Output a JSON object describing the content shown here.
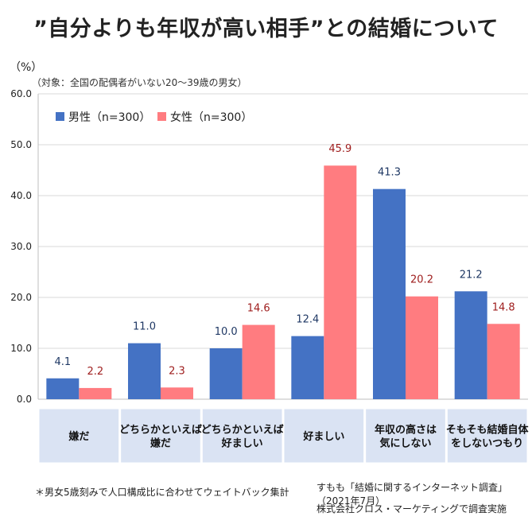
{
  "title": "”自分よりも年収が高い相手”との結婚について",
  "unit": "（%）",
  "subtitle": "（対象：全国の配偶者がいない20～39歳の男女）",
  "footnote": "＊男女5歳刻みで人口構成比に合わせてウェイトバック集計",
  "source_line1": "すもも「結婚に関するインターネット調査」（2021年7月）",
  "source_line2": "株式会社クロス・マーケティングで調査実施",
  "chart_data": {
    "type": "bar",
    "categories": [
      [
        "嫌だ"
      ],
      [
        "どちらかといえば",
        "嫌だ"
      ],
      [
        "どちらかといえば",
        "好ましい"
      ],
      [
        "好ましい"
      ],
      [
        "年収の高さは",
        "気にしない"
      ],
      [
        "そもそも結婚自体",
        "をしないつもり"
      ]
    ],
    "series": [
      {
        "name": "男性（n=300）",
        "values": [
          4.1,
          11.0,
          10.0,
          12.4,
          41.3,
          21.2
        ],
        "color": "#4472c4",
        "label_color": "#1f3864"
      },
      {
        "name": "女性（n=300）",
        "values": [
          2.2,
          2.3,
          14.6,
          45.9,
          20.2,
          14.8
        ],
        "color": "#ff7c80",
        "label_color": "#9e1c1c"
      }
    ],
    "ylim": [
      0,
      60
    ],
    "yticks": [
      0.0,
      10.0,
      20.0,
      30.0,
      40.0,
      50.0,
      60.0
    ],
    "grid": true,
    "legend": "top-left",
    "category_box_color": "#dae3f3"
  }
}
